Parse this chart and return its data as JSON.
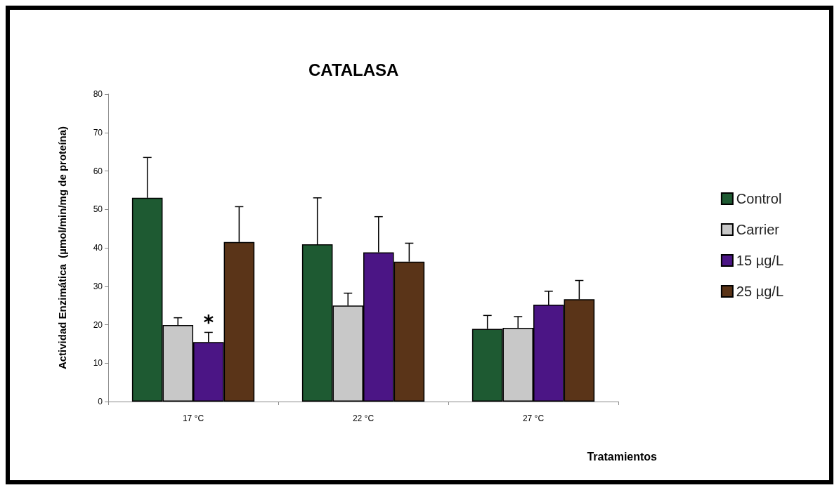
{
  "chart_data": {
    "type": "bar",
    "title": "CATALASA",
    "xlabel": "Tratamientos",
    "ylabel": "Actividad Enzimática  (µmol/min/mg de proteína)",
    "categories": [
      "17 °C",
      "22 °C",
      "27 °C"
    ],
    "series": [
      {
        "name": "Control",
        "color": "#1e5a32",
        "values": [
          53.0,
          40.9,
          18.9
        ],
        "errors": [
          [
            53.0,
            63.5
          ],
          [
            40.9,
            53.0
          ],
          [
            18.9,
            22.4
          ]
        ]
      },
      {
        "name": "Carrier",
        "color": "#c8c8c8",
        "values": [
          19.9,
          25.0,
          19.2
        ],
        "errors": [
          [
            19.9,
            21.8
          ],
          [
            25.0,
            28.2
          ],
          [
            19.2,
            22.1
          ]
        ]
      },
      {
        "name": "15 µg/L",
        "color": "#4b1585",
        "values": [
          15.5,
          38.8,
          25.2
        ],
        "errors": [
          [
            15.5,
            18.0
          ],
          [
            38.8,
            48.1
          ],
          [
            25.2,
            28.7
          ]
        ]
      },
      {
        "name": "25 µg/L",
        "color": "#5a3418",
        "values": [
          41.5,
          36.4,
          26.6
        ],
        "errors": [
          [
            41.5,
            50.7
          ],
          [
            36.4,
            41.2
          ],
          [
            26.6,
            31.5
          ]
        ]
      }
    ],
    "annotations": [
      {
        "text": "*",
        "x": "17 °C",
        "y": 20.5
      }
    ],
    "ylim": [
      0,
      80
    ],
    "yticks": [
      0,
      10,
      20,
      30,
      40,
      50,
      60,
      70,
      80
    ],
    "grid": false,
    "legend": "right"
  }
}
